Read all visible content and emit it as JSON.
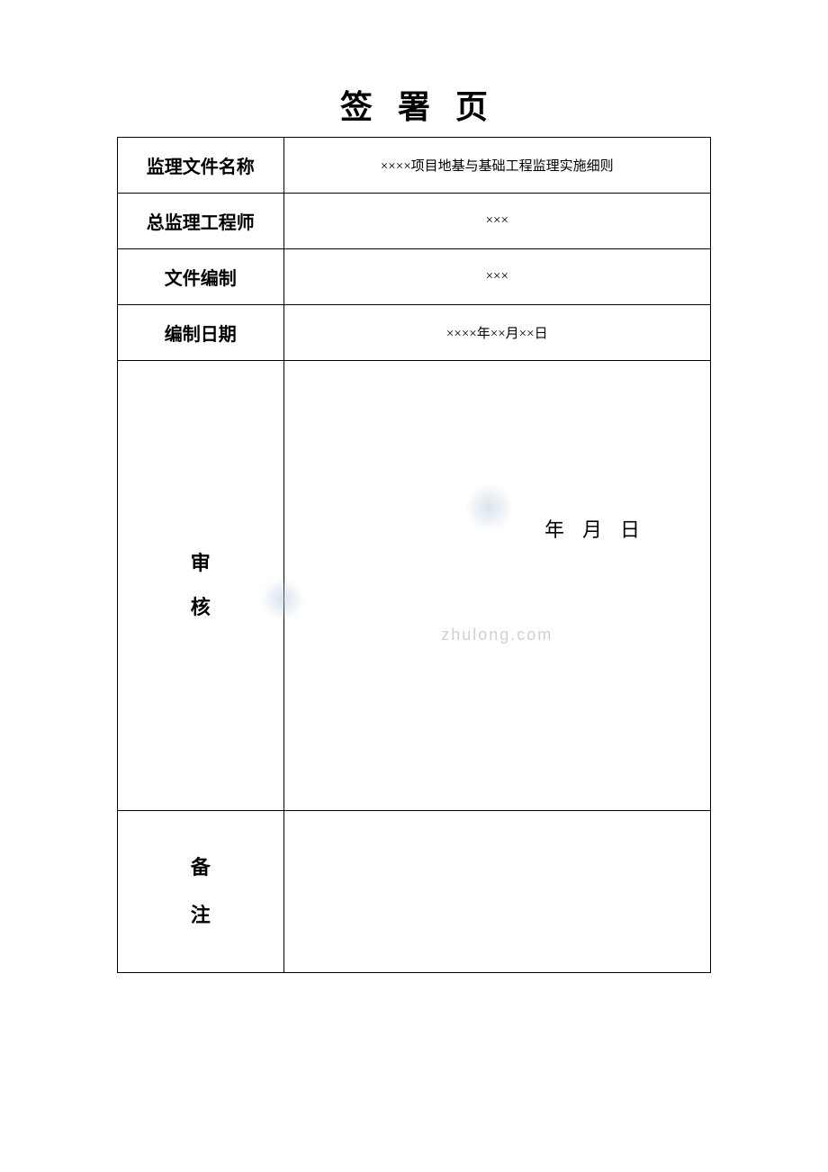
{
  "title": "签署页",
  "table": {
    "rows": [
      {
        "label": "监理文件名称",
        "value": "××××项目地基与基础工程监理实施细则"
      },
      {
        "label": "总监理工程师",
        "value": "×××"
      },
      {
        "label": "文件编制",
        "value": "×××"
      },
      {
        "label": "编制日期",
        "value": "××××年××月××日"
      }
    ],
    "review": {
      "label_char1": "审",
      "label_char2": "核",
      "date_text": "年月日"
    },
    "remark": {
      "label_char1": "备",
      "label_char2": "注"
    },
    "watermark": "zhulong.com"
  },
  "colors": {
    "border": "#000000",
    "background": "#ffffff",
    "text": "#000000",
    "watermark": "#d0d0d0",
    "blob": "rgba(180,200,220,0.5)"
  },
  "fonts": {
    "title_size": 36,
    "label_size": 20,
    "value_size": 15,
    "review_label_size": 22,
    "date_size": 22
  }
}
